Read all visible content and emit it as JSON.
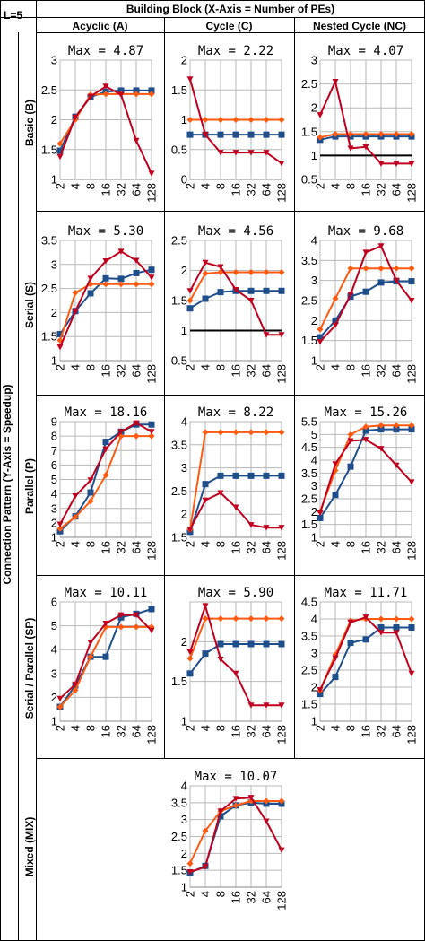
{
  "header": {
    "corner_label": "L=5",
    "title": "Building Block  (X-Axis = Number of PEs)",
    "columns": [
      "Acyclic (A)",
      "Cycle (C)",
      "Nested Cycle (NC)"
    ],
    "side_title": "Connection Pattern  (Y-Axis = Speedup)",
    "rows": [
      "Basic (B)",
      "Serial (S)",
      "Parallel (P)",
      "Serial / Parallel (SP)",
      "Mixed (MIX)"
    ]
  },
  "colors": {
    "blue": "#1f4e8c",
    "orange": "#ff5a12",
    "red": "#c0001e",
    "black": "#000000",
    "grid": "#b9b9b9"
  },
  "chart_data": [
    {
      "id": "B-A",
      "type": "line",
      "title": "Max = 4.87",
      "categories": [
        "2",
        "4",
        "8",
        "16",
        "32",
        "64",
        "128"
      ],
      "ylim": [
        1,
        3
      ],
      "yticks": [
        "1",
        "1.5",
        "2",
        "2.5",
        "3"
      ],
      "grid": true,
      "series": [
        {
          "color": "blue",
          "marker": "square",
          "values": [
            1.48,
            2.05,
            2.38,
            2.47,
            2.49,
            2.49,
            2.49
          ]
        },
        {
          "color": "orange",
          "marker": "diamond",
          "values": [
            1.6,
            2.0,
            2.42,
            2.43,
            2.43,
            2.43,
            2.43
          ]
        },
        {
          "color": "red",
          "marker": "triangle-down",
          "values": [
            1.38,
            2.04,
            2.39,
            2.56,
            2.42,
            1.65,
            1.1
          ]
        }
      ]
    },
    {
      "id": "B-C",
      "type": "line",
      "title": "Max = 2.22",
      "categories": [
        "2",
        "4",
        "8",
        "16",
        "32",
        "64",
        "128"
      ],
      "ylim": [
        0,
        2
      ],
      "yticks": [
        "0",
        "0.5",
        "1",
        "1.5",
        "2"
      ],
      "grid": true,
      "series": [
        {
          "color": "black",
          "marker": "none",
          "values": [
            1,
            1,
            1,
            1,
            1,
            1,
            1
          ]
        },
        {
          "color": "blue",
          "marker": "square",
          "values": [
            0.75,
            0.75,
            0.75,
            0.75,
            0.75,
            0.75,
            0.75
          ]
        },
        {
          "color": "orange",
          "marker": "diamond",
          "values": [
            1,
            1,
            1,
            1,
            1,
            1,
            1
          ]
        },
        {
          "color": "red",
          "marker": "triangle-down",
          "values": [
            1.68,
            0.75,
            0.45,
            0.45,
            0.45,
            0.45,
            0.27
          ]
        }
      ]
    },
    {
      "id": "B-NC",
      "type": "line",
      "title": "Max = 4.07",
      "categories": [
        "2",
        "4",
        "8",
        "16",
        "32",
        "64",
        "128"
      ],
      "ylim": [
        0.5,
        3
      ],
      "yticks": [
        "0.5",
        "1",
        "1.5",
        "2",
        "2.5",
        "3"
      ],
      "grid": true,
      "series": [
        {
          "color": "black",
          "marker": "none",
          "values": [
            1,
            1,
            1,
            1,
            1,
            1,
            1
          ]
        },
        {
          "color": "blue",
          "marker": "square",
          "values": [
            1.33,
            1.4,
            1.4,
            1.4,
            1.4,
            1.4,
            1.4
          ]
        },
        {
          "color": "orange",
          "marker": "diamond",
          "values": [
            1.38,
            1.45,
            1.45,
            1.45,
            1.45,
            1.45,
            1.45
          ]
        },
        {
          "color": "red",
          "marker": "triangle-down",
          "values": [
            1.85,
            2.55,
            1.15,
            1.18,
            0.83,
            0.83,
            0.83
          ]
        }
      ]
    },
    {
      "id": "S-A",
      "type": "line",
      "title": "Max = 5.30",
      "categories": [
        "2",
        "4",
        "8",
        "16",
        "32",
        "64",
        "128"
      ],
      "ylim": [
        1,
        3.5
      ],
      "yticks": [
        "1",
        "1.5",
        "2",
        "2.5",
        "3",
        "3.5"
      ],
      "grid": true,
      "series": [
        {
          "color": "blue",
          "marker": "square",
          "values": [
            1.55,
            2.03,
            2.4,
            2.71,
            2.7,
            2.82,
            2.89
          ]
        },
        {
          "color": "orange",
          "marker": "diamond",
          "values": [
            1.42,
            2.41,
            2.59,
            2.59,
            2.59,
            2.59,
            2.59
          ]
        },
        {
          "color": "red",
          "marker": "triangle-down",
          "values": [
            1.28,
            2.02,
            2.71,
            3.07,
            3.27,
            3.08,
            2.73
          ]
        }
      ]
    },
    {
      "id": "S-C",
      "type": "line",
      "title": "Max = 4.56",
      "categories": [
        "2",
        "4",
        "8",
        "16",
        "32",
        "64",
        "128"
      ],
      "ylim": [
        0.5,
        2.5
      ],
      "yticks": [
        "0.5",
        "1",
        "1.5",
        "2",
        "2.5"
      ],
      "grid": true,
      "series": [
        {
          "color": "black",
          "marker": "none",
          "values": [
            1,
            1,
            1,
            1,
            1,
            1,
            1
          ]
        },
        {
          "color": "blue",
          "marker": "square",
          "values": [
            1.37,
            1.53,
            1.64,
            1.66,
            1.66,
            1.66,
            1.66
          ]
        },
        {
          "color": "orange",
          "marker": "diamond",
          "values": [
            1.5,
            1.95,
            1.97,
            1.97,
            1.97,
            1.97,
            1.97
          ]
        },
        {
          "color": "red",
          "marker": "triangle-down",
          "values": [
            1.66,
            2.13,
            2.06,
            1.68,
            1.5,
            0.93,
            0.93
          ]
        }
      ]
    },
    {
      "id": "S-NC",
      "type": "line",
      "title": "Max = 9.68",
      "categories": [
        "2",
        "4",
        "8",
        "16",
        "32",
        "64",
        "128"
      ],
      "ylim": [
        1,
        4
      ],
      "yticks": [
        "1",
        "1.5",
        "2",
        "2.5",
        "3",
        "3.5",
        "4"
      ],
      "grid": true,
      "series": [
        {
          "color": "blue",
          "marker": "square",
          "values": [
            1.58,
            2.0,
            2.6,
            2.72,
            2.95,
            2.98,
            2.98
          ]
        },
        {
          "color": "orange",
          "marker": "diamond",
          "values": [
            1.78,
            2.55,
            3.3,
            3.3,
            3.3,
            3.3,
            3.3
          ]
        },
        {
          "color": "red",
          "marker": "triangle-down",
          "values": [
            1.47,
            1.88,
            2.65,
            3.7,
            3.86,
            3.0,
            2.5
          ]
        }
      ]
    },
    {
      "id": "P-A",
      "type": "line",
      "title": "Max = 18.16",
      "categories": [
        "2",
        "4",
        "8",
        "16",
        "32",
        "64",
        "128"
      ],
      "ylim": [
        1,
        9
      ],
      "yticks": [
        "1",
        "2",
        "3",
        "4",
        "5",
        "6",
        "7",
        "8",
        "9"
      ],
      "grid": true,
      "series": [
        {
          "color": "blue",
          "marker": "square",
          "values": [
            1.42,
            2.45,
            4.1,
            7.6,
            8.3,
            8.8,
            8.8
          ]
        },
        {
          "color": "orange",
          "marker": "diamond",
          "values": [
            1.6,
            2.4,
            3.5,
            5.3,
            8.0,
            8.0,
            8.0
          ]
        },
        {
          "color": "red",
          "marker": "triangle-down",
          "values": [
            1.9,
            3.85,
            4.95,
            7.1,
            8.3,
            8.9,
            8.3
          ]
        }
      ]
    },
    {
      "id": "P-C",
      "type": "line",
      "title": "Max = 8.22",
      "categories": [
        "2",
        "4",
        "8",
        "16",
        "32",
        "64",
        "128"
      ],
      "ylim": [
        1.5,
        4
      ],
      "yticks": [
        "1.5",
        "2",
        "2.5",
        "3",
        "3.5",
        "4"
      ],
      "grid": true,
      "series": [
        {
          "color": "blue",
          "marker": "square",
          "values": [
            1.62,
            2.65,
            2.83,
            2.83,
            2.83,
            2.83,
            2.83
          ]
        },
        {
          "color": "orange",
          "marker": "diamond",
          "values": [
            1.67,
            3.77,
            3.77,
            3.77,
            3.77,
            3.77,
            3.77
          ]
        },
        {
          "color": "red",
          "marker": "triangle-down",
          "values": [
            1.67,
            2.3,
            2.46,
            2.15,
            1.77,
            1.71,
            1.71
          ]
        }
      ]
    },
    {
      "id": "P-NC",
      "type": "line",
      "title": "Max = 15.26",
      "categories": [
        "2",
        "4",
        "8",
        "16",
        "32",
        "64",
        "128"
      ],
      "ylim": [
        1,
        5.5
      ],
      "yticks": [
        "1",
        "1.5",
        "2",
        "2.5",
        "3",
        "3.5",
        "4",
        "4.5",
        "5",
        "5.5"
      ],
      "grid": true,
      "series": [
        {
          "color": "blue",
          "marker": "square",
          "values": [
            1.75,
            2.65,
            3.75,
            5.15,
            5.2,
            5.2,
            5.2
          ]
        },
        {
          "color": "orange",
          "marker": "diamond",
          "values": [
            2.0,
            3.6,
            5.0,
            5.3,
            5.35,
            5.35,
            5.35
          ]
        },
        {
          "color": "red",
          "marker": "triangle-down",
          "values": [
            1.95,
            3.85,
            4.75,
            4.8,
            4.45,
            3.8,
            3.15
          ]
        }
      ]
    },
    {
      "id": "SP-A",
      "type": "line",
      "title": "Max = 10.11",
      "categories": [
        "2",
        "4",
        "8",
        "16",
        "32",
        "64",
        "128"
      ],
      "ylim": [
        1,
        6
      ],
      "yticks": [
        "1",
        "2",
        "3",
        "4",
        "5",
        "6"
      ],
      "grid": true,
      "series": [
        {
          "color": "blue",
          "marker": "square",
          "values": [
            1.6,
            2.5,
            3.7,
            3.7,
            5.35,
            5.5,
            5.7
          ]
        },
        {
          "color": "orange",
          "marker": "diamond",
          "values": [
            1.6,
            2.3,
            3.7,
            4.95,
            4.95,
            4.95,
            4.95
          ]
        },
        {
          "color": "red",
          "marker": "triangle-down",
          "values": [
            1.95,
            2.55,
            4.3,
            5.1,
            5.45,
            5.45,
            4.8
          ]
        }
      ]
    },
    {
      "id": "SP-C",
      "type": "line",
      "title": "Max = 5.90",
      "categories": [
        "2",
        "4",
        "8",
        "16",
        "32",
        "64",
        "128"
      ],
      "ylim": [
        1,
        2.5
      ],
      "yticks": [
        "1",
        "1.5",
        "2"
      ],
      "grid": true,
      "series": [
        {
          "color": "blue",
          "marker": "square",
          "values": [
            1.6,
            1.85,
            1.97,
            1.97,
            1.97,
            1.97,
            1.97
          ]
        },
        {
          "color": "orange",
          "marker": "diamond",
          "values": [
            1.79,
            2.29,
            2.29,
            2.29,
            2.29,
            2.29,
            2.29
          ]
        },
        {
          "color": "red",
          "marker": "triangle-down",
          "values": [
            1.87,
            2.45,
            1.78,
            1.6,
            1.2,
            1.2,
            1.2
          ]
        }
      ]
    },
    {
      "id": "SP-NC",
      "type": "line",
      "title": "Max = 11.71",
      "categories": [
        "2",
        "4",
        "8",
        "16",
        "32",
        "64",
        "128"
      ],
      "ylim": [
        1,
        4.5
      ],
      "yticks": [
        "1",
        "1.5",
        "2",
        "2.5",
        "3",
        "3.5",
        "4",
        "4.5"
      ],
      "grid": true,
      "series": [
        {
          "color": "blue",
          "marker": "square",
          "values": [
            1.8,
            2.3,
            3.3,
            3.4,
            3.75,
            3.75,
            3.75
          ]
        },
        {
          "color": "orange",
          "marker": "diamond",
          "values": [
            1.9,
            2.95,
            3.95,
            4.0,
            4.0,
            4.0,
            4.0
          ]
        },
        {
          "color": "red",
          "marker": "triangle-down",
          "values": [
            1.92,
            2.85,
            3.9,
            4.05,
            3.6,
            3.6,
            2.4
          ]
        }
      ]
    },
    {
      "id": "MIX",
      "type": "line",
      "title": "Max = 10.07",
      "categories": [
        "2",
        "4",
        "8",
        "16",
        "32",
        "64",
        "128"
      ],
      "ylim": [
        1,
        4
      ],
      "yticks": [
        "1",
        "1.5",
        "2",
        "2.5",
        "3",
        "3.5",
        "4"
      ],
      "grid": true,
      "series": [
        {
          "color": "blue",
          "marker": "square",
          "values": [
            1.43,
            1.63,
            3.1,
            3.42,
            3.5,
            3.47,
            3.47
          ]
        },
        {
          "color": "orange",
          "marker": "diamond",
          "values": [
            1.7,
            2.67,
            3.25,
            3.42,
            3.55,
            3.55,
            3.55
          ]
        },
        {
          "color": "red",
          "marker": "triangle-down",
          "values": [
            1.45,
            1.6,
            3.25,
            3.62,
            3.65,
            2.95,
            2.1
          ]
        }
      ]
    }
  ]
}
